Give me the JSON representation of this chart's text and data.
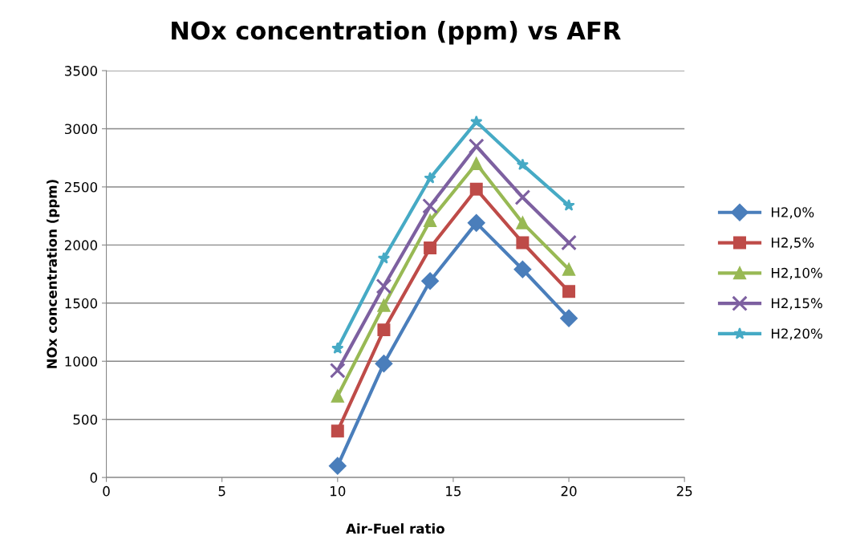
{
  "chart_data": {
    "type": "line",
    "title": "NOx concentration (ppm) vs AFR",
    "xlabel": "Air-Fuel ratio",
    "ylabel": "NOx concentration (ppm)",
    "x": [
      10,
      12,
      14,
      16,
      18,
      20
    ],
    "series": [
      {
        "name": "H2,0%",
        "color": "#4a7ebb",
        "marker": "diamond",
        "values": [
          100,
          980,
          1690,
          2190,
          1790,
          1370
        ]
      },
      {
        "name": "H2,5%",
        "color": "#be4b48",
        "marker": "square",
        "values": [
          400,
          1270,
          1975,
          2480,
          2020,
          1600
        ]
      },
      {
        "name": "H2,10%",
        "color": "#98b954",
        "marker": "triangle",
        "values": [
          700,
          1480,
          2210,
          2700,
          2190,
          1790
        ]
      },
      {
        "name": "H2,15%",
        "color": "#7d60a0",
        "marker": "cross",
        "values": [
          920,
          1645,
          2335,
          2850,
          2410,
          2020
        ]
      },
      {
        "name": "H2,20%",
        "color": "#46aac5",
        "marker": "star",
        "values": [
          1110,
          1885,
          2575,
          3060,
          2690,
          2340
        ]
      }
    ],
    "xlim": [
      0,
      25
    ],
    "xticks": [
      0,
      5,
      10,
      15,
      20,
      25
    ],
    "ylim": [
      0,
      3500
    ],
    "yticks": [
      0,
      500,
      1000,
      1500,
      2000,
      2500,
      3000,
      3500
    ],
    "grid": "y",
    "legend": "right",
    "line_style": "solid"
  }
}
